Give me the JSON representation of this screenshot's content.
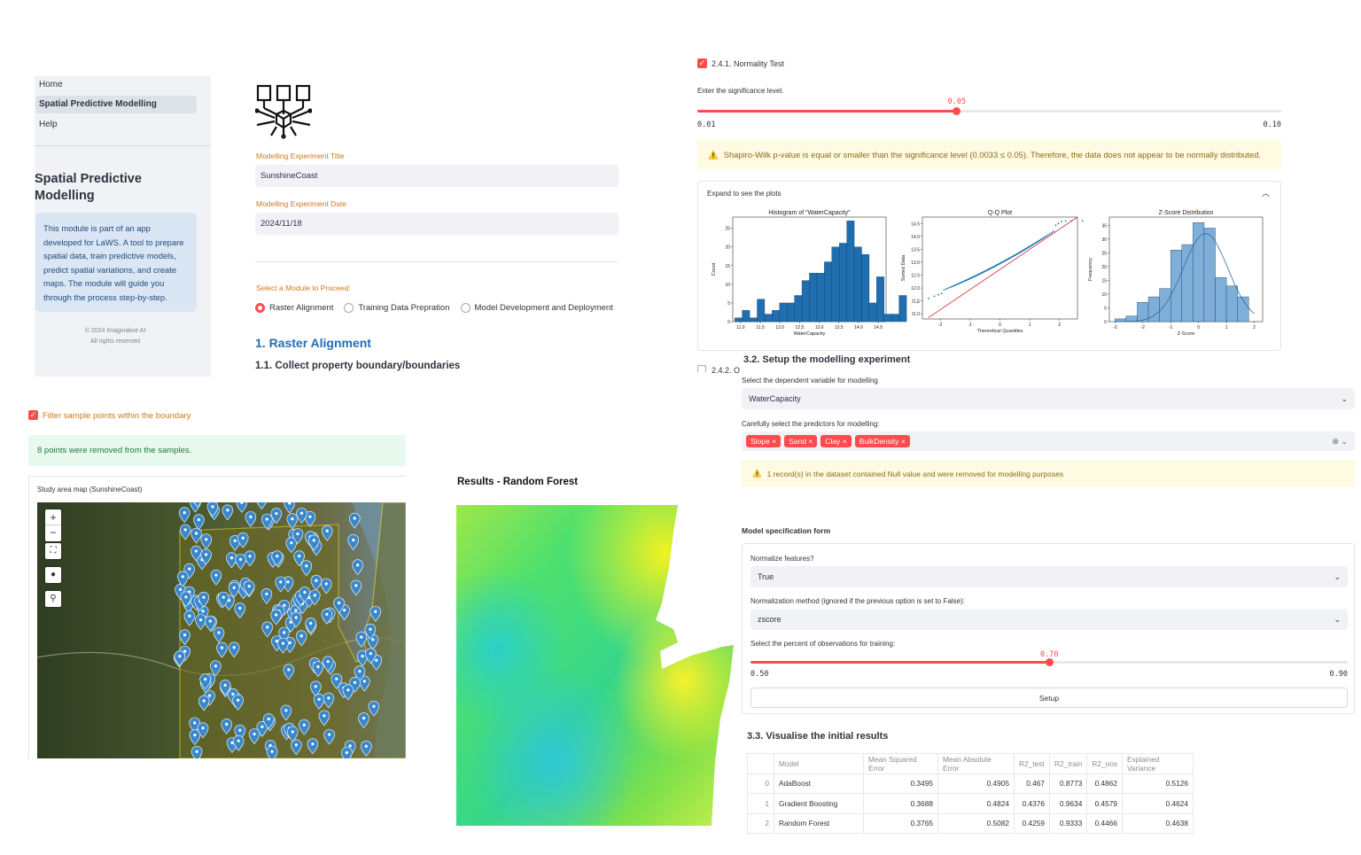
{
  "sidebar": {
    "nav": [
      "Home",
      "Spatial Predictive Modelling",
      "Help"
    ],
    "title": "Spatial Predictive Modelling",
    "info": "This module is part of an app developed for LaWS. A tool to prepare spatial data, train predictive models, predict spatial variations, and create maps. The module will guide you through the process step-by-step.",
    "copyright": "© 2024 Imaginative AI",
    "rights": "All rights reserved"
  },
  "form": {
    "title_label": "Modelling Experiment Title",
    "title_value": "SunshineCoast",
    "date_label": "Modelling Experiment Date",
    "date_value": "2024/11/18",
    "module_label": "Select a Module to Proceed:",
    "modules": [
      "Raster Alignment",
      "Training Data Prepration",
      "Model Development and Deployment"
    ],
    "selected_module": 0,
    "h1": "1. Raster Alignment",
    "h2": "1.1. Collect property boundary/boundaries"
  },
  "normality": {
    "checkbox_label": "2.4.1. Normality Test",
    "sig_label": "Enter the significance level.",
    "slider": {
      "min": "0.01",
      "max": "0.10",
      "value": "0.05",
      "fraction": 0.444
    },
    "warning": "Shapiro-Wilk p-value is equal or smaller than the significance level (0.0033 ≤ 0.05). Therefore, the data does not appear to be normally distributed.",
    "expander_label": "Expand to see the plots",
    "next_item": "2.4.2. O"
  },
  "chart_data": [
    {
      "type": "bar",
      "title": "Histogram of \"WaterCapacity\"",
      "xlabel": "WaterCapacity",
      "ylabel": "Count",
      "xticks": [
        "11.0",
        "11.5",
        "12.0",
        "12.5",
        "13.0",
        "13.5",
        "14.0",
        "14.5"
      ],
      "yticks": [
        "0",
        "5",
        "10",
        "15",
        "20",
        "25"
      ],
      "xlim": [
        10.8,
        14.7
      ],
      "ylim": [
        0,
        28
      ],
      "bin_start": 10.85,
      "bin_width": 0.19,
      "values": [
        1,
        3,
        1,
        6,
        2,
        3,
        5,
        5,
        7,
        11,
        13,
        13,
        16,
        20,
        21,
        27,
        20,
        18,
        5,
        12,
        2,
        2,
        7
      ]
    },
    {
      "type": "scatter",
      "title": "Q-Q Plot",
      "xlabel": "Theoretical Quantiles",
      "ylabel": "Sorted Data",
      "xticks": [
        "-2",
        "-1",
        "0",
        "1",
        "2"
      ],
      "yticks": [
        "11.0",
        "11.5",
        "12.0",
        "12.5",
        "13.0",
        "13.5",
        "14.0",
        "14.5"
      ],
      "xlim": [
        -2.6,
        2.6
      ],
      "ylim": [
        10.8,
        14.75
      ]
    },
    {
      "type": "bar",
      "title": "Z-Score Distribution",
      "xlabel": "Z-Score",
      "ylabel": "Frequency",
      "xticks": [
        "-3",
        "-2",
        "-1",
        "0",
        "1",
        "2"
      ],
      "yticks": [
        "0",
        "5",
        "10",
        "15",
        "20",
        "25",
        "30",
        "35"
      ],
      "xlim": [
        -3.2,
        2.3
      ],
      "ylim": [
        0,
        38
      ],
      "bin_start": -3.0,
      "bin_width": 0.4,
      "values": [
        1,
        2,
        7,
        9,
        12,
        26,
        28,
        36,
        34,
        16,
        13,
        9
      ]
    }
  ],
  "filter": {
    "checkbox_label": "Filter sample points within the boundary",
    "success": "8 points were removed from the samples.",
    "map_title": "Study area map (SunshineCoast)"
  },
  "results": {
    "title": "Results - Random Forest"
  },
  "setup": {
    "h3": "3.2. Setup the modelling experiment",
    "dep_label": "Select the dependent variable for modelling",
    "dep_value": "WaterCapacity",
    "pred_label": "Carefully select the predictors for modelling:",
    "predictors": [
      "Slope",
      "Sand",
      "Clay",
      "BulkDensity"
    ],
    "null_warning": "1 record(s) in the dataset contained Null value and were removed for modelling purposes",
    "form_title": "Model specification form",
    "normalize_label": "Normalize features?",
    "normalize_value": "True",
    "method_label": "Normalization method (ignored if the previous option is set to False):",
    "method_value": "zscore",
    "train_label": "Select the percent of observations for training:",
    "train_slider": {
      "min": "0.50",
      "max": "0.90",
      "value": "0.70",
      "fraction": 0.5
    },
    "button": "Setup"
  },
  "visualise": {
    "h3": "3.3. Visualise the initial results",
    "columns": [
      "",
      "Model",
      "Mean Squared Error",
      "Mean Absolute Error",
      "R2_test",
      "R2_train",
      "R2_oos",
      "Explained Variance"
    ],
    "rows": [
      [
        "0",
        "AdaBoost",
        "0.3495",
        "0.4905",
        "0.467",
        "0.8773",
        "0.4862",
        "0.5126"
      ],
      [
        "1",
        "Gradient Boosting",
        "0.3688",
        "0.4824",
        "0.4376",
        "0.9634",
        "0.4579",
        "0.4624"
      ],
      [
        "2",
        "Random Forest",
        "0.3765",
        "0.5082",
        "0.4259",
        "0.9333",
        "0.4466",
        "0.4638"
      ]
    ]
  },
  "colors": {
    "accent": "#ff4b4b",
    "bar": "#1f6fb0",
    "zbar": "#7fafd8",
    "pin": "#3a87c9"
  }
}
